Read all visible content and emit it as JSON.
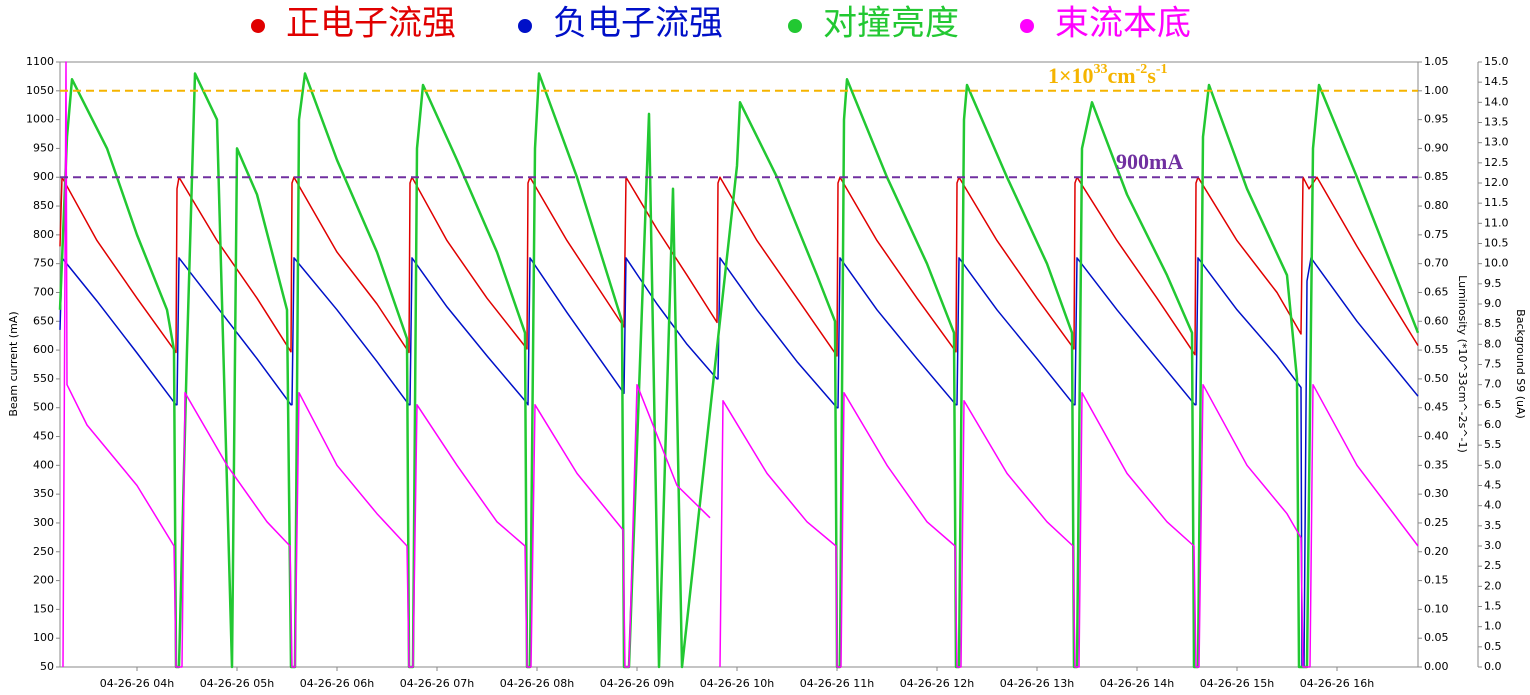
{
  "chart_data": {
    "type": "line",
    "legend": "top",
    "y_label": "Beam current (mA)",
    "y2_label": "Luminosity (*10^33cm^-2s^-1)",
    "y3_label": "Background S9 (uA)",
    "xlim": [
      3.23,
      16.81
    ],
    "xticks": [
      {
        "value": 4,
        "label": "04-26-26 04h"
      },
      {
        "value": 5,
        "label": "04-26-26 05h"
      },
      {
        "value": 6,
        "label": "04-26-26 06h"
      },
      {
        "value": 7,
        "label": "04-26-26 07h"
      },
      {
        "value": 8,
        "label": "04-26-26 08h"
      },
      {
        "value": 9,
        "label": "04-26-26 09h"
      },
      {
        "value": 10,
        "label": "04-26-26 10h"
      },
      {
        "value": 11,
        "label": "04-26-26 11h"
      },
      {
        "value": 12,
        "label": "04-26-26 12h"
      },
      {
        "value": 13,
        "label": "04-26-26 13h"
      },
      {
        "value": 14,
        "label": "04-26-26 14h"
      },
      {
        "value": 15,
        "label": "04-26-26 15h"
      },
      {
        "value": 16,
        "label": "04-26-26 16h"
      }
    ],
    "ylim": [
      50,
      1100
    ],
    "yticks": [
      50,
      100,
      150,
      200,
      250,
      300,
      350,
      400,
      450,
      500,
      550,
      600,
      650,
      700,
      750,
      800,
      850,
      900,
      950,
      1000,
      1050,
      1100
    ],
    "y2lim": [
      0,
      1.05
    ],
    "y2ticks": [
      {
        "value": 0,
        "label": "0.00"
      },
      {
        "value": 0.05,
        "label": "0.05"
      },
      {
        "value": 0.1,
        "label": "0.10"
      },
      {
        "value": 0.15,
        "label": "0.15"
      },
      {
        "value": 0.2,
        "label": "0.20"
      },
      {
        "value": 0.25,
        "label": "0.25"
      },
      {
        "value": 0.3,
        "label": "0.30"
      },
      {
        "value": 0.35,
        "label": "0.35"
      },
      {
        "value": 0.4,
        "label": "0.40"
      },
      {
        "value": 0.45,
        "label": "0.45"
      },
      {
        "value": 0.5,
        "label": "0.50"
      },
      {
        "value": 0.55,
        "label": "0.55"
      },
      {
        "value": 0.6,
        "label": "0.60"
      },
      {
        "value": 0.65,
        "label": "0.65"
      },
      {
        "value": 0.7,
        "label": "0.70"
      },
      {
        "value": 0.75,
        "label": "0.75"
      },
      {
        "value": 0.8,
        "label": "0.80"
      },
      {
        "value": 0.85,
        "label": "0.85"
      },
      {
        "value": 0.9,
        "label": "0.90"
      },
      {
        "value": 0.95,
        "label": "0.95"
      },
      {
        "value": 1,
        "label": "1.00"
      },
      {
        "value": 1.05,
        "label": "1.05"
      }
    ],
    "y3lim": [
      0,
      15
    ],
    "y3ticks": [
      {
        "value": 0,
        "label": "0.0"
      },
      {
        "value": 0.5,
        "label": "0.5"
      },
      {
        "value": 1,
        "label": "1.0"
      },
      {
        "value": 1.5,
        "label": "1.5"
      },
      {
        "value": 2,
        "label": "2.0"
      },
      {
        "value": 2.5,
        "label": "2.5"
      },
      {
        "value": 3,
        "label": "3.0"
      },
      {
        "value": 3.5,
        "label": "3.5"
      },
      {
        "value": 4,
        "label": "4.0"
      },
      {
        "value": 4.5,
        "label": "4.5"
      },
      {
        "value": 5,
        "label": "5.0"
      },
      {
        "value": 5.5,
        "label": "5.5"
      },
      {
        "value": 6,
        "label": "6.0"
      },
      {
        "value": 6.5,
        "label": "6.5"
      },
      {
        "value": 7,
        "label": "7.0"
      },
      {
        "value": 7.5,
        "label": "7.5"
      },
      {
        "value": 8,
        "label": "8.0"
      },
      {
        "value": 8.5,
        "label": "8.5"
      },
      {
        "value": 9,
        "label": "9.0"
      },
      {
        "value": 9.5,
        "label": "9.5"
      },
      {
        "value": 10,
        "label": "10.0"
      },
      {
        "value": 10.5,
        "label": "10.5"
      },
      {
        "value": 11,
        "label": "11.0"
      },
      {
        "value": 11.5,
        "label": "11.5"
      },
      {
        "value": 12,
        "label": "12.0"
      },
      {
        "value": 12.5,
        "label": "12.5"
      },
      {
        "value": 13,
        "label": "13.0"
      },
      {
        "value": 13.5,
        "label": "13.5"
      },
      {
        "value": 14,
        "label": "14.0"
      },
      {
        "value": 14.5,
        "label": "14.5"
      },
      {
        "value": 15,
        "label": "15.0"
      }
    ],
    "reference_lines": [
      {
        "axis": "y2",
        "value": 1,
        "color": "#f5b400",
        "label_parts": [
          "1×10",
          "33",
          "cm",
          "-2",
          "s",
          "-1"
        ]
      },
      {
        "axis": "y",
        "value": 900,
        "color": "#7030a0",
        "label_parts": [
          "900mA"
        ]
      }
    ],
    "series": [
      {
        "name": "正电子流强",
        "color": "#e00000",
        "axis": "y",
        "x": [
          3.23,
          3.25,
          3.6,
          4.0,
          4.39,
          4.4,
          4.42,
          4.8,
          5.2,
          5.54,
          5.55,
          5.57,
          6.0,
          6.4,
          6.72,
          6.73,
          6.75,
          7.1,
          7.5,
          7.9,
          7.91,
          7.93,
          8.3,
          8.87,
          8.89,
          9.2,
          9.5,
          9.8,
          9.81,
          9.83,
          10.2,
          10.6,
          11.0,
          11.01,
          11.03,
          11.4,
          11.8,
          12.19,
          12.2,
          12.22,
          12.6,
          13.0,
          13.37,
          13.38,
          13.4,
          13.8,
          14.2,
          14.58,
          14.59,
          14.61,
          15.0,
          15.4,
          15.64,
          15.66,
          15.72,
          15.8,
          16.2,
          16.81
        ],
        "values": [
          780,
          900,
          790,
          690,
          596,
          880,
          900,
          790,
          690,
          597,
          890,
          900,
          770,
          680,
          596,
          890,
          900,
          790,
          690,
          602,
          890,
          900,
          790,
          640,
          900,
          810,
          730,
          648,
          890,
          900,
          790,
          690,
          590,
          890,
          900,
          790,
          690,
          597,
          890,
          900,
          790,
          690,
          602,
          890,
          900,
          790,
          690,
          592,
          890,
          900,
          790,
          700,
          628,
          900,
          880,
          900,
          780,
          608
        ]
      },
      {
        "name": "负电子流强",
        "color": "#0010c8",
        "axis": "y",
        "x": [
          3.23,
          3.25,
          3.6,
          4.0,
          4.39,
          4.4,
          4.42,
          4.8,
          5.2,
          5.54,
          5.55,
          5.57,
          6.0,
          6.4,
          6.72,
          6.73,
          6.75,
          7.1,
          7.5,
          7.9,
          7.91,
          7.93,
          8.3,
          8.87,
          8.89,
          9.2,
          9.5,
          9.8,
          9.81,
          9.83,
          10.2,
          10.6,
          11.0,
          11.01,
          11.03,
          11.4,
          11.8,
          12.19,
          12.2,
          12.22,
          12.6,
          13.0,
          13.37,
          13.38,
          13.4,
          13.8,
          14.2,
          14.58,
          14.59,
          14.61,
          15.0,
          15.4,
          15.64,
          15.65,
          15.67,
          15.7,
          15.74,
          16.2,
          16.81
        ],
        "values": [
          635,
          760,
          685,
          595,
          505,
          505,
          760,
          675,
          585,
          505,
          505,
          760,
          670,
          580,
          505,
          505,
          760,
          675,
          590,
          508,
          505,
          760,
          665,
          525,
          760,
          680,
          610,
          550,
          550,
          760,
          670,
          580,
          500,
          500,
          760,
          670,
          585,
          505,
          505,
          760,
          670,
          585,
          505,
          505,
          760,
          670,
          585,
          505,
          505,
          760,
          670,
          590,
          535,
          50,
          50,
          720,
          760,
          650,
          520
        ]
      },
      {
        "name": "对撞亮度",
        "color": "#22c832",
        "axis": "y2",
        "x": [
          3.23,
          3.3,
          3.35,
          3.7,
          4.0,
          4.3,
          4.37,
          4.39,
          4.42,
          4.5,
          4.58,
          4.8,
          4.95,
          5.0,
          5.2,
          5.5,
          5.54,
          5.58,
          5.62,
          5.68,
          6.0,
          6.4,
          6.7,
          6.72,
          6.76,
          6.8,
          6.86,
          7.2,
          7.6,
          7.88,
          7.9,
          7.93,
          7.98,
          8.02,
          8.4,
          8.85,
          8.87,
          8.92,
          9.12,
          9.22,
          9.36,
          9.45,
          10.0,
          10.03,
          10.4,
          10.8,
          10.98,
          11.0,
          11.03,
          11.07,
          11.1,
          11.5,
          11.9,
          12.17,
          12.19,
          12.22,
          12.27,
          12.3,
          12.7,
          13.1,
          13.35,
          13.37,
          13.4,
          13.45,
          13.55,
          13.9,
          14.3,
          14.55,
          14.57,
          14.61,
          14.66,
          14.72,
          15.1,
          15.5,
          15.6,
          15.62,
          15.7,
          15.76,
          15.82,
          16.2,
          16.81
        ],
        "values": [
          0.62,
          0.92,
          1.02,
          0.9,
          0.75,
          0.62,
          0.55,
          0,
          0,
          0.55,
          1.03,
          0.95,
          0,
          0.9,
          0.82,
          0.62,
          0,
          0,
          0.95,
          1.03,
          0.88,
          0.72,
          0.57,
          0,
          0,
          0.9,
          1.01,
          0.88,
          0.72,
          0.58,
          0,
          0,
          0.9,
          1.03,
          0.85,
          0.6,
          0,
          0,
          0.96,
          0,
          0.83,
          0,
          0.87,
          0.98,
          0.85,
          0.68,
          0.6,
          0,
          0,
          0.95,
          1.02,
          0.85,
          0.7,
          0.58,
          0,
          0,
          0.95,
          1.01,
          0.85,
          0.7,
          0.58,
          0,
          0,
          0.9,
          0.98,
          0.82,
          0.68,
          0.58,
          0,
          0,
          0.92,
          1.01,
          0.83,
          0.68,
          0.5,
          0,
          0,
          0.9,
          1.01,
          0.85,
          0.58
        ]
      },
      {
        "name": "束流本底",
        "color": "#ff00ff",
        "axis": "y3",
        "x": [
          3.26,
          3.29,
          3.3,
          3.5,
          4.0,
          4.37,
          4.39,
          4.45,
          4.48,
          4.9,
          5.3,
          5.53,
          5.55,
          5.58,
          5.62,
          6.0,
          6.4,
          6.7,
          6.72,
          6.76,
          6.8,
          7.2,
          7.6,
          7.88,
          7.9,
          7.94,
          7.98,
          8.4,
          8.86,
          8.88,
          8.92,
          9.0,
          9.4,
          9.73,
          9.78,
          9.83,
          9.86,
          10.3,
          10.7,
          10.99,
          11.0,
          11.04,
          11.07,
          11.5,
          11.9,
          12.18,
          12.2,
          12.24,
          12.27,
          12.7,
          13.1,
          13.36,
          13.38,
          13.42,
          13.45,
          13.9,
          14.3,
          14.57,
          14.59,
          14.62,
          14.66,
          15.1,
          15.5,
          15.64,
          15.66,
          15.73,
          15.76,
          16.2,
          16.81
        ],
        "values": [
          0,
          15,
          7,
          6,
          4.5,
          3,
          0,
          0,
          6.8,
          5,
          3.6,
          3,
          0,
          0,
          6.8,
          5,
          3.8,
          3,
          0,
          0,
          6.5,
          5,
          3.6,
          3,
          0,
          0,
          6.5,
          4.8,
          3.4,
          0,
          0,
          7,
          4.5,
          3.7,
          null,
          0,
          6.6,
          4.8,
          3.6,
          3,
          0,
          0,
          6.8,
          5,
          3.6,
          3,
          0,
          0,
          6.6,
          4.8,
          3.6,
          3,
          0,
          0,
          6.8,
          4.8,
          3.6,
          3,
          0,
          0,
          7,
          5,
          3.8,
          3.2,
          0,
          0,
          7,
          5,
          3
        ]
      }
    ]
  }
}
